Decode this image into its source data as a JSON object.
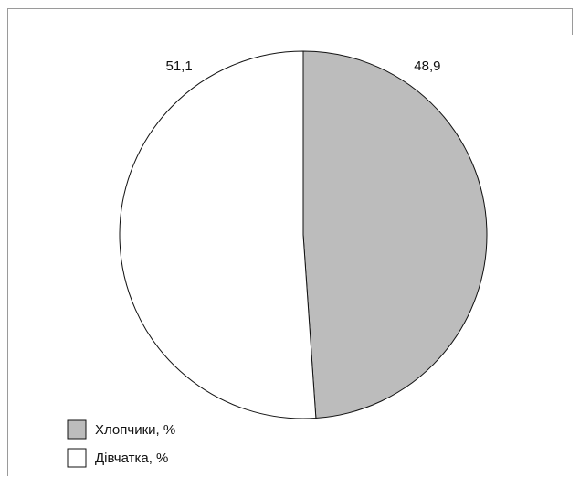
{
  "chart_data": {
    "type": "pie",
    "slices": [
      {
        "name": "Хлопчики, %",
        "value": 48.9,
        "label": "48,9",
        "color": "#bcbcbc"
      },
      {
        "name": "Дівчатка, %",
        "value": 51.1,
        "label": "51,1",
        "color": "#ffffff"
      }
    ],
    "legend_position": "bottom-left",
    "start": "top",
    "direction": "clockwise"
  }
}
